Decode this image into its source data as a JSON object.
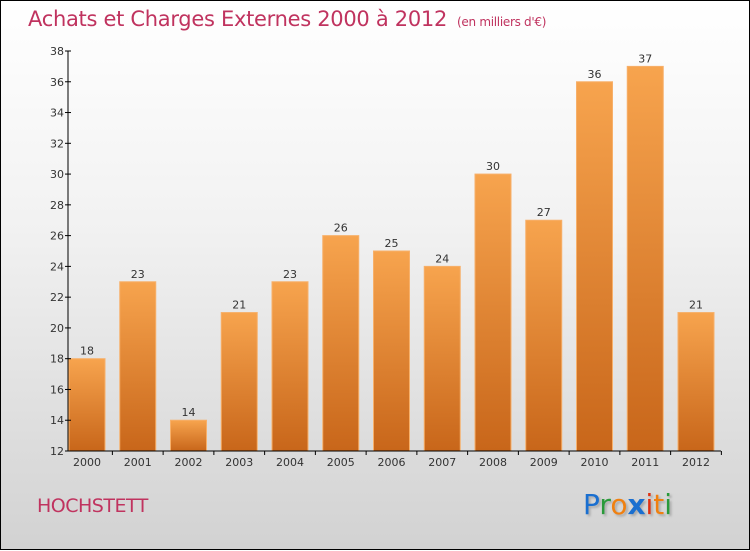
{
  "chart_data": {
    "type": "bar",
    "title": "Achats et Charges Externes 2000 à 2012",
    "subtitle": "(en milliers d'€)",
    "categories": [
      "2000",
      "2001",
      "2002",
      "2003",
      "2004",
      "2005",
      "2006",
      "2007",
      "2008",
      "2009",
      "2010",
      "2011",
      "2012"
    ],
    "values": [
      18,
      23,
      14,
      21,
      23,
      26,
      25,
      24,
      30,
      27,
      36,
      37,
      21
    ],
    "ylim": [
      12,
      38
    ],
    "yticks": [
      12,
      14,
      16,
      18,
      20,
      22,
      24,
      26,
      28,
      30,
      32,
      34,
      36,
      38
    ],
    "xlabel": "",
    "ylabel": "",
    "grid": false,
    "bar_color_top": "#f7a44e",
    "bar_color_bottom": "#c8661a"
  },
  "footer": {
    "city": "HOCHSTETT",
    "logo": "Proxiti"
  },
  "colors": {
    "title": "#c0335f"
  }
}
